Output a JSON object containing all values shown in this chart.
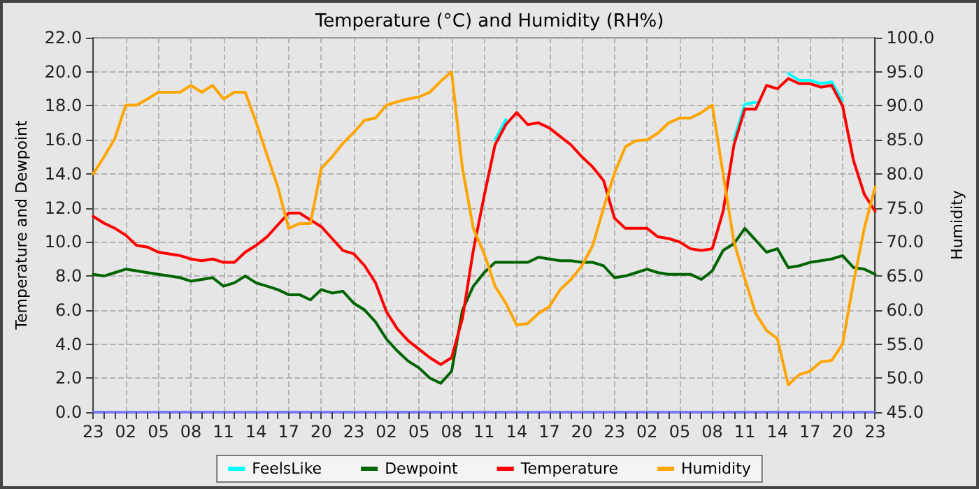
{
  "chart_data": {
    "type": "line",
    "title": "Temperature (°C) and Humidity (RH%)",
    "ylabel": "Temperature and Dewpoint",
    "y2label": "Humidity",
    "categories": [
      "23",
      null,
      null,
      "02",
      null,
      null,
      "05",
      null,
      null,
      "08",
      null,
      null,
      "11",
      null,
      null,
      "14",
      null,
      null,
      "17",
      null,
      null,
      "20",
      null,
      null,
      "23",
      null,
      null,
      "02",
      null,
      null,
      "05",
      null,
      null,
      "08",
      null,
      null,
      "11",
      null,
      null,
      "14",
      null,
      null,
      "17",
      null,
      null,
      "20",
      null,
      null,
      "23",
      null,
      null,
      "02",
      null,
      null,
      "05",
      null,
      null,
      "08",
      null,
      null,
      "11",
      null,
      null,
      "14",
      null,
      null,
      "17",
      null,
      null,
      "20",
      null,
      null,
      "23"
    ],
    "ylim": [
      0,
      22
    ],
    "yticks": [
      {
        "value": 0,
        "label": "0.0"
      },
      {
        "value": 2,
        "label": "2.0"
      },
      {
        "value": 4,
        "label": "4.0"
      },
      {
        "value": 6,
        "label": "6.0"
      },
      {
        "value": 8,
        "label": "8.0"
      },
      {
        "value": 10,
        "label": "10.0"
      },
      {
        "value": 12,
        "label": "12.0"
      },
      {
        "value": 14,
        "label": "14.0"
      },
      {
        "value": 16,
        "label": "16.0"
      },
      {
        "value": 18,
        "label": "18.0"
      },
      {
        "value": 20,
        "label": "20.0"
      },
      {
        "value": 22,
        "label": "22.0"
      }
    ],
    "y2lim": [
      45,
      100
    ],
    "y2ticks": [
      {
        "value": 45,
        "label": "45.0"
      },
      {
        "value": 50,
        "label": "50.0"
      },
      {
        "value": 55,
        "label": "55.0"
      },
      {
        "value": 60,
        "label": "60.0"
      },
      {
        "value": 65,
        "label": "65.0"
      },
      {
        "value": 70,
        "label": "70.0"
      },
      {
        "value": 75,
        "label": "75.0"
      },
      {
        "value": 80,
        "label": "80.0"
      },
      {
        "value": 85,
        "label": "85.0"
      },
      {
        "value": 90,
        "label": "90.0"
      },
      {
        "value": 95,
        "label": "95.0"
      },
      {
        "value": 100,
        "label": "100.0"
      }
    ],
    "grid": true,
    "legend": "bottom",
    "marker": "none",
    "line_style": "solid",
    "series": [
      {
        "name": "FeelsLike",
        "color": "#00ffff",
        "values": [
          null,
          null,
          null,
          null,
          null,
          null,
          null,
          null,
          null,
          null,
          null,
          null,
          null,
          null,
          null,
          null,
          null,
          null,
          null,
          null,
          null,
          null,
          null,
          null,
          null,
          null,
          null,
          null,
          null,
          null,
          null,
          null,
          null,
          null,
          null,
          null,
          null,
          16.0,
          17.2,
          null,
          null,
          null,
          null,
          null,
          null,
          null,
          null,
          null,
          null,
          null,
          null,
          null,
          null,
          null,
          null,
          null,
          null,
          null,
          null,
          16.0,
          18.1,
          18.2,
          null,
          null,
          19.9,
          19.5,
          19.5,
          19.3,
          19.4,
          18.3,
          null,
          null,
          null
        ]
      },
      {
        "name": "Dewpoint",
        "color": "#006400",
        "values": [
          8.1,
          8.0,
          8.2,
          8.4,
          8.3,
          8.2,
          8.1,
          8.0,
          7.9,
          7.7,
          7.8,
          7.9,
          7.4,
          7.6,
          8.0,
          7.6,
          7.4,
          7.2,
          6.9,
          6.9,
          6.6,
          7.2,
          7.0,
          7.1,
          6.4,
          6.0,
          5.3,
          4.3,
          3.6,
          3.0,
          2.6,
          2.0,
          1.7,
          2.4,
          6.0,
          7.4,
          8.2,
          8.8,
          8.8,
          8.8,
          8.8,
          9.1,
          9.0,
          8.9,
          8.9,
          8.8,
          8.8,
          8.6,
          7.9,
          8.0,
          8.2,
          8.4,
          8.2,
          8.1,
          8.1,
          8.1,
          7.8,
          8.3,
          9.5,
          9.9,
          10.8,
          10.1,
          9.4,
          9.6,
          8.5,
          8.6,
          8.8,
          8.9,
          9.0,
          9.2,
          8.5,
          8.4,
          8.1
        ]
      },
      {
        "name": "Temperature",
        "color": "#ff0000",
        "values": [
          11.5,
          11.1,
          10.8,
          10.4,
          9.8,
          9.7,
          9.4,
          9.3,
          9.2,
          9.0,
          8.9,
          9.0,
          8.8,
          8.8,
          9.4,
          9.8,
          10.3,
          11.0,
          11.7,
          11.7,
          11.3,
          10.9,
          10.2,
          9.5,
          9.3,
          8.6,
          7.6,
          5.9,
          4.9,
          4.2,
          3.7,
          3.2,
          2.8,
          3.2,
          5.5,
          9.5,
          12.7,
          15.7,
          16.9,
          17.6,
          16.9,
          17.0,
          16.7,
          16.2,
          15.7,
          15.0,
          14.4,
          13.6,
          11.4,
          10.8,
          10.8,
          10.8,
          10.3,
          10.2,
          10.0,
          9.6,
          9.5,
          9.6,
          11.8,
          15.7,
          17.8,
          17.8,
          19.2,
          19.0,
          19.6,
          19.3,
          19.3,
          19.1,
          19.2,
          18.0,
          14.8,
          12.8,
          11.8
        ]
      },
      {
        "name": "Humidity",
        "color": "#ffa500",
        "axis": "y2",
        "values": [
          80.0,
          82.5,
          85.2,
          90.1,
          90.1,
          91.0,
          92.0,
          92.0,
          92.0,
          93.0,
          92.0,
          93.0,
          91.0,
          92.0,
          92.0,
          87.6,
          82.8,
          78.1,
          72.0,
          72.7,
          72.7,
          80.8,
          82.5,
          84.5,
          86.1,
          87.9,
          88.2,
          90.1,
          90.6,
          91.0,
          91.3,
          92.0,
          93.6,
          95.0,
          80.8,
          72.0,
          68.3,
          63.5,
          61.0,
          57.8,
          58.0,
          59.5,
          60.5,
          63.0,
          64.5,
          66.5,
          69.5,
          75.0,
          80.1,
          84.0,
          84.9,
          85.0,
          86.0,
          87.5,
          88.2,
          88.2,
          89.0,
          90.1,
          80.0,
          70.0,
          64.6,
          59.5,
          57.0,
          55.8,
          49.0,
          50.5,
          51.0,
          52.4,
          52.6,
          55.0,
          64.0,
          72.0,
          78.1
        ]
      }
    ]
  }
}
